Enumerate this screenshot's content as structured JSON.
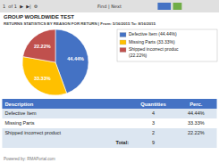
{
  "chart_data": {
    "type": "pie",
    "title": "GROUP WORLDWIDE TEST",
    "subtitle": "RETURNS STATISTICS BY REASON FOR RETURN | From: 5/16/2015 To: 8/16/2015",
    "categories": [
      "Defective Item (44.44%)",
      "Missing Parts (33.33%)",
      "Shipped incorrect produc\n(22.22%)"
    ],
    "values": [
      44.44,
      33.33,
      22.22
    ],
    "value_labels": [
      "44.44%",
      "33.33%",
      "22.22%"
    ],
    "colors": [
      "#4472C4",
      "#FFC000",
      "#C0504D"
    ],
    "data_labels": true,
    "legend": "upper right",
    "annotations": [
      "1  of 1  ▶  ▶|  ⚙",
      "Find | Next",
      "Powered by: RMAPortal.com"
    ],
    "table": {
      "headers": [
        "Description",
        "Quantities",
        "Perc."
      ],
      "rows": [
        [
          "Defective Item",
          "4",
          "44.44%"
        ],
        [
          "Missing Parts",
          "3",
          "33.33%"
        ],
        [
          "Shipped incorrect product",
          "2",
          "22.22%"
        ]
      ],
      "total_label": "Total:",
      "total_qty": "9"
    }
  }
}
